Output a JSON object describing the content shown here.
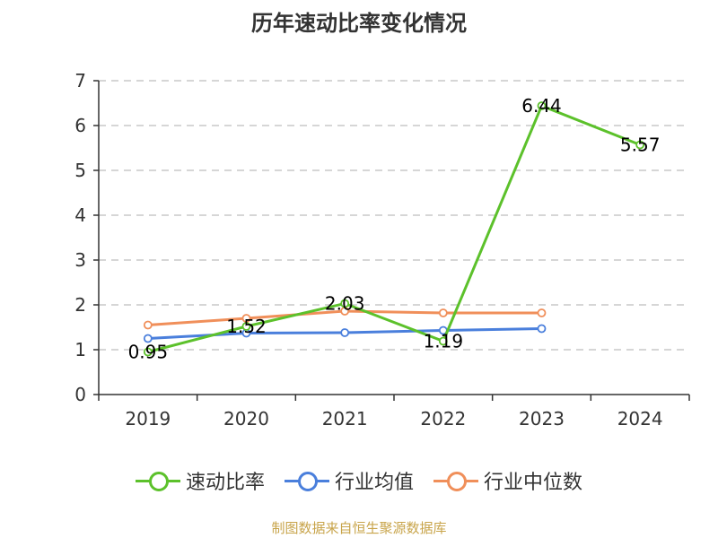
{
  "chart_data": {
    "type": "line",
    "title": "历年速动比率变化情况",
    "categories": [
      "2019",
      "2020",
      "2021",
      "2022",
      "2023",
      "2024"
    ],
    "ylim": [
      0,
      7
    ],
    "yticks": [
      "0",
      "1",
      "2",
      "3",
      "4",
      "5",
      "6",
      "7"
    ],
    "grid": true,
    "legend_position": "bottom",
    "series": [
      {
        "name": "速动比率",
        "color": "#5cc12b",
        "values": [
          0.95,
          1.52,
          2.03,
          1.19,
          6.44,
          5.57
        ],
        "labels": [
          "0.95",
          "1.52",
          "2.03",
          "1.19",
          "6.44",
          "5.57"
        ],
        "show_labels": true
      },
      {
        "name": "行业均值",
        "color": "#4a7fdc",
        "values": [
          1.25,
          1.37,
          1.38,
          1.43,
          1.47,
          null
        ],
        "show_labels": false
      },
      {
        "name": "行业中位数",
        "color": "#f08f5a",
        "values": [
          1.55,
          1.7,
          1.86,
          1.82,
          1.82,
          null
        ],
        "show_labels": false
      }
    ]
  },
  "source": "制图数据来自恒生聚源数据库"
}
